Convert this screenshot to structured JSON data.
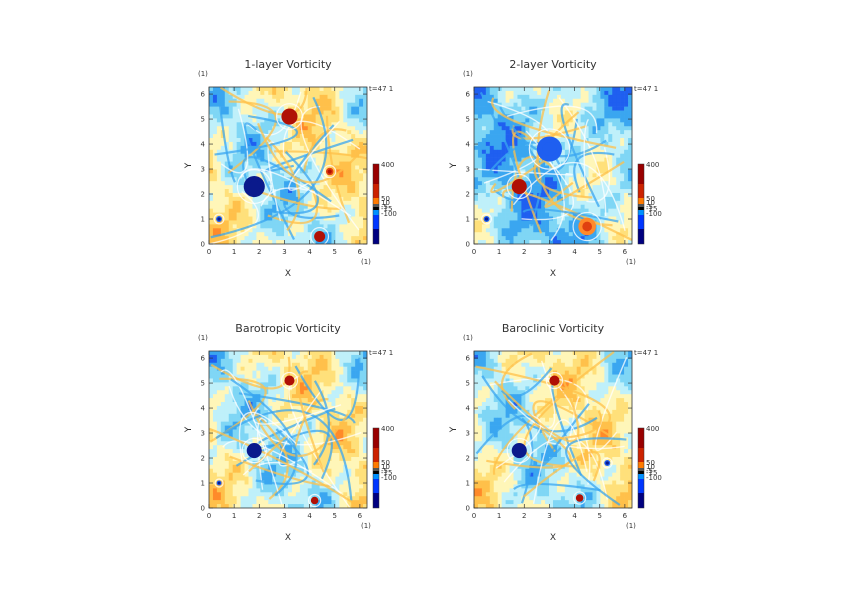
{
  "chart_data": [
    {
      "type": "heatmap",
      "title": "1-layer Vorticity",
      "xlabel": "X",
      "ylabel": "Y",
      "x_unit": "(1)",
      "y_unit": "(1)",
      "time_label": "t=47 1",
      "xlim": [
        0,
        6.2832
      ],
      "ylim": [
        0,
        6.2832
      ],
      "x_ticks": [
        "0",
        "1",
        "2",
        "3",
        "4",
        "5",
        "6"
      ],
      "y_ticks": [
        "0",
        "1",
        "2",
        "3",
        "4",
        "5",
        "6"
      ],
      "colorbar": {
        "labels": [
          "400",
          "50",
          "10",
          "-5",
          "-15",
          "-100"
        ]
      },
      "features": [
        {
          "x": 1.8,
          "y": 2.3,
          "r": 0.42,
          "v": -120
        },
        {
          "x": 3.2,
          "y": 5.1,
          "r": 0.32,
          "v": 250
        },
        {
          "x": 4.4,
          "y": 0.3,
          "r": 0.22,
          "v": 160
        },
        {
          "x": 0.4,
          "y": 1.0,
          "r": 0.12,
          "v": -60
        },
        {
          "x": 4.8,
          "y": 2.9,
          "r": 0.15,
          "v": 120
        }
      ]
    },
    {
      "type": "heatmap",
      "title": "2-layer Vorticity",
      "xlabel": "X",
      "ylabel": "Y",
      "x_unit": "(1)",
      "y_unit": "(1)",
      "time_label": "t=47 1",
      "xlim": [
        0,
        6.2832
      ],
      "ylim": [
        0,
        6.2832
      ],
      "x_ticks": [
        "0",
        "1",
        "2",
        "3",
        "4",
        "5",
        "6"
      ],
      "y_ticks": [
        "0",
        "1",
        "2",
        "3",
        "4",
        "5",
        "6"
      ],
      "colorbar": {
        "labels": [
          "400",
          "50",
          "10",
          "-5",
          "-15",
          "-100"
        ]
      },
      "features": [
        {
          "x": 1.8,
          "y": 2.3,
          "r": 0.3,
          "v": 200
        },
        {
          "x": 3.0,
          "y": 3.8,
          "r": 0.5,
          "v": -30
        },
        {
          "x": 4.5,
          "y": 0.7,
          "r": 0.35,
          "v": 25
        },
        {
          "x": 0.5,
          "y": 1.0,
          "r": 0.12,
          "v": -60
        }
      ]
    },
    {
      "type": "heatmap",
      "title": "Barotropic Vorticity",
      "xlabel": "X",
      "ylabel": "Y",
      "x_unit": "(1)",
      "y_unit": "(1)",
      "time_label": "t=47 1",
      "xlim": [
        0,
        6.2832
      ],
      "ylim": [
        0,
        6.2832
      ],
      "x_ticks": [
        "0",
        "1",
        "2",
        "3",
        "4",
        "5",
        "6"
      ],
      "y_ticks": [
        "0",
        "1",
        "2",
        "3",
        "4",
        "5",
        "6"
      ],
      "colorbar": {
        "labels": [
          "400",
          "50",
          "10",
          "-5",
          "-15",
          "-100"
        ]
      },
      "features": [
        {
          "x": 1.8,
          "y": 2.3,
          "r": 0.3,
          "v": -100
        },
        {
          "x": 3.2,
          "y": 5.1,
          "r": 0.2,
          "v": 220
        },
        {
          "x": 4.2,
          "y": 0.3,
          "r": 0.15,
          "v": 140
        },
        {
          "x": 0.4,
          "y": 1.0,
          "r": 0.1,
          "v": -60
        }
      ]
    },
    {
      "type": "heatmap",
      "title": "Baroclinic Vorticity",
      "xlabel": "X",
      "ylabel": "Y",
      "x_unit": "(1)",
      "y_unit": "(1)",
      "time_label": "t=47 1",
      "xlim": [
        0,
        6.2832
      ],
      "ylim": [
        0,
        6.2832
      ],
      "x_ticks": [
        "0",
        "1",
        "2",
        "3",
        "4",
        "5",
        "6"
      ],
      "y_ticks": [
        "0",
        "1",
        "2",
        "3",
        "4",
        "5",
        "6"
      ],
      "colorbar": {
        "labels": [
          "400",
          "50",
          "10",
          "-5",
          "-15",
          "-100"
        ]
      },
      "features": [
        {
          "x": 1.8,
          "y": 2.3,
          "r": 0.3,
          "v": -100
        },
        {
          "x": 3.2,
          "y": 5.1,
          "r": 0.2,
          "v": 220
        },
        {
          "x": 4.2,
          "y": 0.4,
          "r": 0.15,
          "v": 140
        },
        {
          "x": 5.3,
          "y": 1.8,
          "r": 0.12,
          "v": -40
        }
      ]
    }
  ],
  "palette": [
    "#0a1a8c",
    "#1f5ff0",
    "#3aa6f0",
    "#7fd6f5",
    "#bff0fa",
    "#fff6b8",
    "#ffe07a",
    "#ffc04a",
    "#ff8a2a",
    "#e04010",
    "#b01006"
  ],
  "colorbar_colors": [
    "#000080",
    "#0036ff",
    "#0090ff",
    "#000000",
    "#555555",
    "#ff7a00",
    "#cc2200",
    "#990000"
  ]
}
